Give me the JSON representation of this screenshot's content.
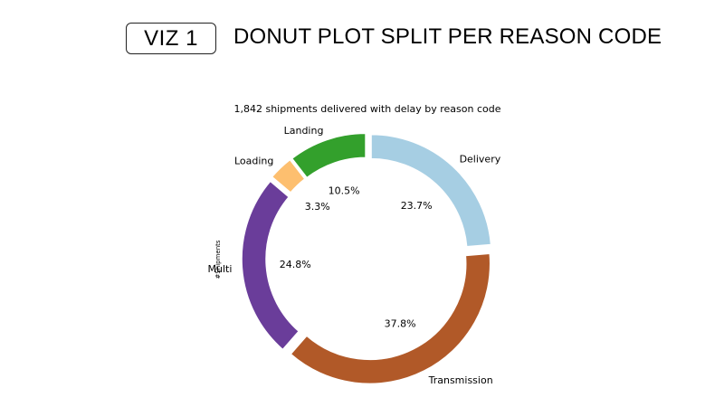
{
  "header": {
    "badge": "VIZ 1",
    "title": "DONUT PLOT SPLIT PER REASON CODE"
  },
  "chart_data": {
    "type": "donut",
    "title": "1,842 shipments delivered with delay by reason code",
    "ylabel": "#Shipments",
    "slices": [
      {
        "label": "Delivery",
        "value": 23.7,
        "pct_label": "23.7%",
        "color": "#a6cee3"
      },
      {
        "label": "Transmission",
        "value": 37.8,
        "pct_label": "37.8%",
        "color": "#b15928"
      },
      {
        "label": "Multi",
        "value": 24.8,
        "pct_label": "24.8%",
        "color": "#6a3d9a"
      },
      {
        "label": "Loading",
        "value": 3.3,
        "pct_label": "3.3%",
        "color": "#fdbf6f"
      },
      {
        "label": "Landing",
        "value": 10.5,
        "pct_label": "10.5%",
        "color": "#33a02c"
      }
    ],
    "start_angle_deg": 90,
    "direction": "clockwise",
    "explode": true
  }
}
